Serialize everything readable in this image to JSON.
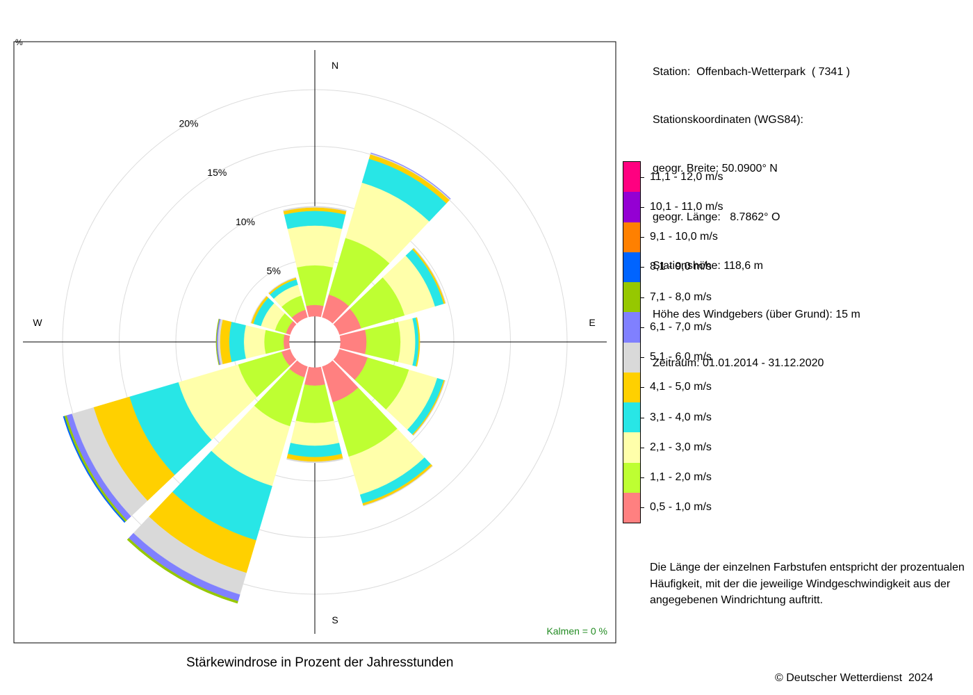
{
  "station_info": {
    "lines": [
      "Station:  Offenbach-Wetterpark  ( 7341 )",
      "Stationskoordinaten (WGS84):",
      "geogr. Breite: 50.0900° N",
      "geogr. Länge:   8.7862° O",
      "Stationshöhe: 118,6 m",
      "Höhe des Windgebers (über Grund): 15 m",
      "Zeitraum: 01.01.2014 - 31.12.2020"
    ]
  },
  "note": "Die Länge der einzelnen Farbstufen entspricht der prozentualen Häufigkeit, mit der die jeweilige Windgeschwindigkeit aus der angegebenen Windrichtung auftritt.",
  "copyright": "© Deutscher Wetterdienst  2024",
  "legend": [
    {
      "label": "11,1 - 12,0 m/s",
      "color": "#ff0080"
    },
    {
      "label": "10,1 - 11,0 m/s",
      "color": "#9400d3"
    },
    {
      "label": "9,1 - 10,0 m/s",
      "color": "#ff8000"
    },
    {
      "label": "8,1 - 9,0 m/s",
      "color": "#0064ff"
    },
    {
      "label": "7,1 - 8,0 m/s",
      "color": "#96c800"
    },
    {
      "label": "6,1 - 7,0 m/s",
      "color": "#8080ff"
    },
    {
      "label": "5,1 - 6,0 m/s",
      "color": "#d9d9d9"
    },
    {
      "label": "4,1 - 5,0 m/s",
      "color": "#ffd000"
    },
    {
      "label": "3,1 - 4,0 m/s",
      "color": "#28e6e6"
    },
    {
      "label": "2,1 - 3,0 m/s",
      "color": "#ffffaa"
    },
    {
      "label": "1,1 - 2,0 m/s",
      "color": "#beff32"
    },
    {
      "label": "0,5 - 1,0 m/s",
      "color": "#ff8080"
    }
  ],
  "chart_data": {
    "type": "windrose",
    "title": "Stärkewindrose in Prozent der Jahresstunden",
    "unit_label": "%",
    "rings": [
      5,
      10,
      15,
      20
    ],
    "ring_labels": [
      "5%",
      "10%",
      "15%",
      "20%"
    ],
    "compass": {
      "n": "N",
      "e": "E",
      "s": "S",
      "w": "W"
    },
    "calm_label": "Kalmen  =  0 %",
    "calm_color": "#228b22",
    "directions": [
      0,
      30,
      60,
      90,
      120,
      150,
      180,
      210,
      240,
      270,
      300,
      330
    ],
    "speed_classes": [
      "0,5 - 1,0 m/s",
      "1,1 - 2,0 m/s",
      "2,1 - 3,0 m/s",
      "3,1 - 4,0 m/s",
      "4,1 - 5,0 m/s",
      "5,1 - 6,0 m/s",
      "6,1 - 7,0 m/s",
      "7,1 - 8,0 m/s",
      "8,1 - 9,0 m/s",
      "9,1 - 10,0 m/s",
      "10,1 - 11,0 m/s",
      "11,1 - 12,0 m/s"
    ],
    "series": [
      {
        "direction": 0,
        "values": [
          1.0,
          3.5,
          3.5,
          1.3,
          0.3,
          0.1,
          0,
          0,
          0,
          0,
          0,
          0
        ]
      },
      {
        "direction": 30,
        "values": [
          2.1,
          5.2,
          5.1,
          2.2,
          0.4,
          0.1,
          0.05,
          0,
          0,
          0,
          0,
          0
        ]
      },
      {
        "direction": 60,
        "values": [
          2.0,
          4.0,
          2.8,
          0.8,
          0.15,
          0.05,
          0,
          0,
          0,
          0,
          0,
          0
        ]
      },
      {
        "direction": 90,
        "values": [
          2.3,
          3.0,
          1.3,
          0.3,
          0.1,
          0,
          0,
          0,
          0,
          0,
          0,
          0
        ]
      },
      {
        "direction": 120,
        "values": [
          2.6,
          3.8,
          2.6,
          0.6,
          0.1,
          0.05,
          0,
          0,
          0,
          0,
          0,
          0
        ]
      },
      {
        "direction": 150,
        "values": [
          3.3,
          5.0,
          3.5,
          0.8,
          0.2,
          0.05,
          0,
          0,
          0,
          0,
          0,
          0
        ]
      },
      {
        "direction": 180,
        "values": [
          1.6,
          3.3,
          2.0,
          1.0,
          0.4,
          0.1,
          0,
          0,
          0,
          0,
          0,
          0
        ]
      },
      {
        "direction": 210,
        "values": [
          1.0,
          4.5,
          5.5,
          5.0,
          3.0,
          2.0,
          0.6,
          0.2,
          0,
          0,
          0,
          0
        ]
      },
      {
        "direction": 240,
        "values": [
          0.8,
          4.0,
          5.5,
          4.5,
          3.3,
          2.0,
          0.5,
          0.2,
          0.1,
          0,
          0,
          0
        ]
      },
      {
        "direction": 270,
        "values": [
          0.5,
          1.7,
          1.8,
          1.3,
          0.8,
          0.2,
          0.1,
          0.05,
          0,
          0,
          0,
          0
        ]
      },
      {
        "direction": 300,
        "values": [
          0.4,
          1.0,
          1.3,
          0.7,
          0.2,
          0.05,
          0,
          0,
          0,
          0,
          0,
          0
        ]
      },
      {
        "direction": 330,
        "values": [
          0.7,
          1.3,
          1.0,
          0.5,
          0.15,
          0.05,
          0,
          0,
          0,
          0,
          0,
          0
        ]
      }
    ]
  }
}
